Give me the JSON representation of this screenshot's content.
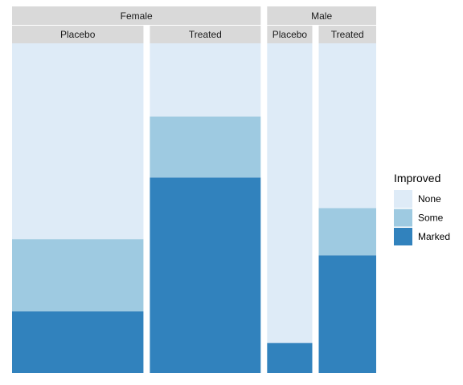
{
  "chart_data": {
    "type": "bar",
    "subtype": "stacked-proportion-mosaic",
    "sex_panels": [
      {
        "label": "Female",
        "treatments": [
          {
            "label": "Placebo",
            "count": 32,
            "proportions": {
              "None": 0.594,
              "Some": 0.219,
              "Marked": 0.187
            }
          },
          {
            "label": "Treated",
            "count": 27,
            "proportions": {
              "None": 0.222,
              "Some": 0.185,
              "Marked": 0.593
            }
          }
        ]
      },
      {
        "label": "Male",
        "treatments": [
          {
            "label": "Placebo",
            "count": 11,
            "proportions": {
              "None": 0.909,
              "Some": 0.0,
              "Marked": 0.091
            }
          },
          {
            "label": "Treated",
            "count": 14,
            "proportions": {
              "None": 0.5,
              "Some": 0.143,
              "Marked": 0.357
            }
          }
        ]
      }
    ],
    "legend": {
      "title": "Improved",
      "position": "right",
      "entries": [
        {
          "label": "None",
          "color": "#deebf7"
        },
        {
          "label": "Some",
          "color": "#9ecae1"
        },
        {
          "label": "Marked",
          "color": "#3182bd"
        }
      ]
    },
    "stack_order_bottom_to_top": [
      "Marked",
      "Some",
      "None"
    ],
    "strip_background": "#d9d9d9",
    "grid": false
  }
}
